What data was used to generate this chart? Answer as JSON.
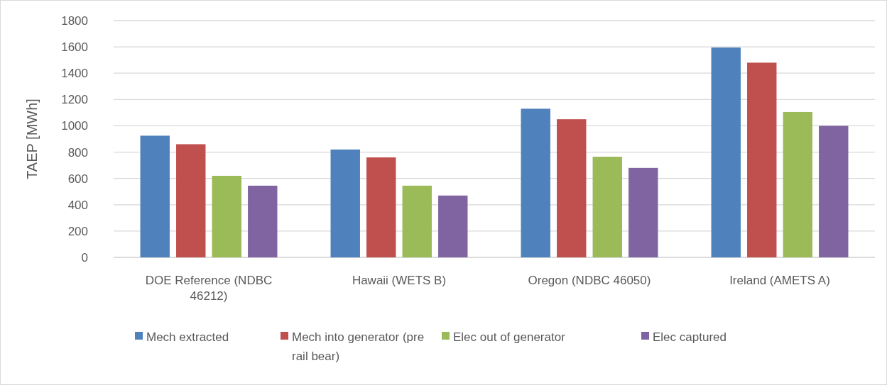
{
  "chart_data": {
    "type": "bar",
    "ylabel": "TAEP [MWh]",
    "categories": [
      "DOE Reference (NDBC 46212)",
      "Hawaii (WETS B)",
      "Oregon (NDBC 46050)",
      "Ireland (AMETS A)"
    ],
    "series": [
      {
        "name": "Mech extracted",
        "color": "#4f81bd",
        "values": [
          925,
          820,
          1130,
          1595
        ]
      },
      {
        "name": "Mech into generator (pre rail bear)",
        "color": "#c0504d",
        "values": [
          860,
          760,
          1050,
          1480
        ]
      },
      {
        "name": "Elec out of generator",
        "color": "#9bbb59",
        "values": [
          620,
          545,
          765,
          1105
        ]
      },
      {
        "name": "Elec captured",
        "color": "#8064a2",
        "values": [
          545,
          470,
          680,
          1000
        ]
      }
    ],
    "ylim": [
      0,
      1800
    ],
    "yticks": [
      0,
      200,
      400,
      600,
      800,
      1000,
      1200,
      1400,
      1600,
      1800
    ],
    "grid": "y",
    "legend": "bottom"
  }
}
